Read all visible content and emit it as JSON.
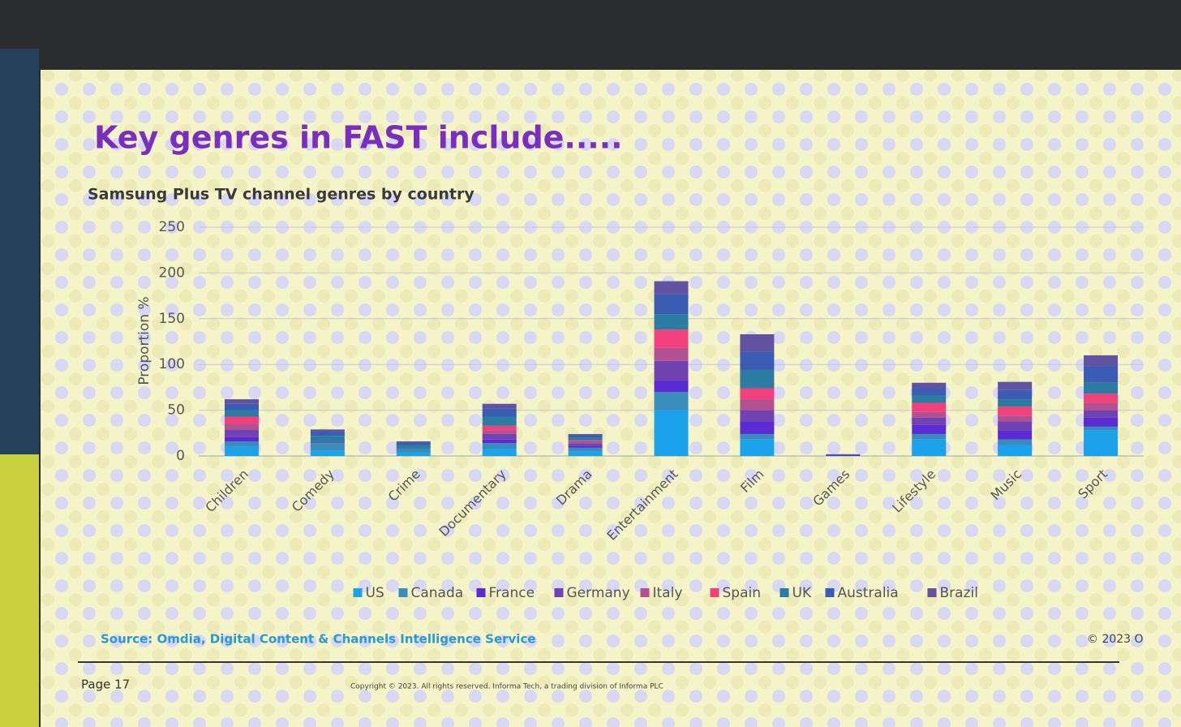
{
  "slide": {
    "title": "Key genres in FAST include.....",
    "source": "Source: Omdia, Digital Content & Channels Intelligence Service",
    "corner_note": "© 2023 O",
    "page": "Page 17",
    "copyright": "Copyright © 2023. All rights reserved. Informa Tech, a trading division of Informa PLC"
  },
  "chart_data": {
    "type": "stacked_bar",
    "title": "Samsung Plus TV channel genres by country",
    "y_label": "Proportion %",
    "categories": [
      "Children",
      "Comedy",
      "Crime",
      "Documentary",
      "Drama",
      "Entertainment",
      "Film",
      "Games",
      "Lifestyle",
      "Music",
      "Sport"
    ],
    "series": [
      {
        "name": "US",
        "color": "#1aa2ea",
        "values": [
          10,
          6,
          4,
          8,
          5,
          50,
          18,
          0,
          18,
          12,
          28
        ]
      },
      {
        "name": "Canada",
        "color": "#3a8cbc",
        "values": [
          6,
          8,
          4,
          6,
          4,
          20,
          6,
          0,
          6,
          6,
          4
        ]
      },
      {
        "name": "France",
        "color": "#5a2ad2",
        "values": [
          5,
          0,
          0,
          4,
          2,
          12,
          14,
          1,
          10,
          10,
          10
        ]
      },
      {
        "name": "Germany",
        "color": "#7042b2",
        "values": [
          8,
          1,
          0,
          6,
          3,
          22,
          12,
          0,
          8,
          10,
          8
        ]
      },
      {
        "name": "Italy",
        "color": "#b25092",
        "values": [
          6,
          0,
          0,
          4,
          2,
          14,
          12,
          0,
          6,
          6,
          8
        ]
      },
      {
        "name": "Spain",
        "color": "#f2407c",
        "values": [
          8,
          0,
          0,
          5,
          1,
          20,
          12,
          0,
          10,
          10,
          10
        ]
      },
      {
        "name": "UK",
        "color": "#2a7ca2",
        "values": [
          7,
          7,
          4,
          10,
          3,
          17,
          20,
          0,
          8,
          8,
          12
        ]
      },
      {
        "name": "Australia",
        "color": "#3a5cb2",
        "values": [
          7,
          5,
          3,
          9,
          3,
          22,
          20,
          1,
          8,
          10,
          18
        ]
      },
      {
        "name": "Brazil",
        "color": "#6252a2",
        "values": [
          5,
          2,
          1,
          5,
          1,
          14,
          19,
          0,
          6,
          9,
          12
        ]
      }
    ],
    "ylim": [
      0,
      250
    ],
    "yticks": [
      0,
      50,
      100,
      150,
      200,
      250
    ],
    "grid": true,
    "legend": "bottom"
  }
}
